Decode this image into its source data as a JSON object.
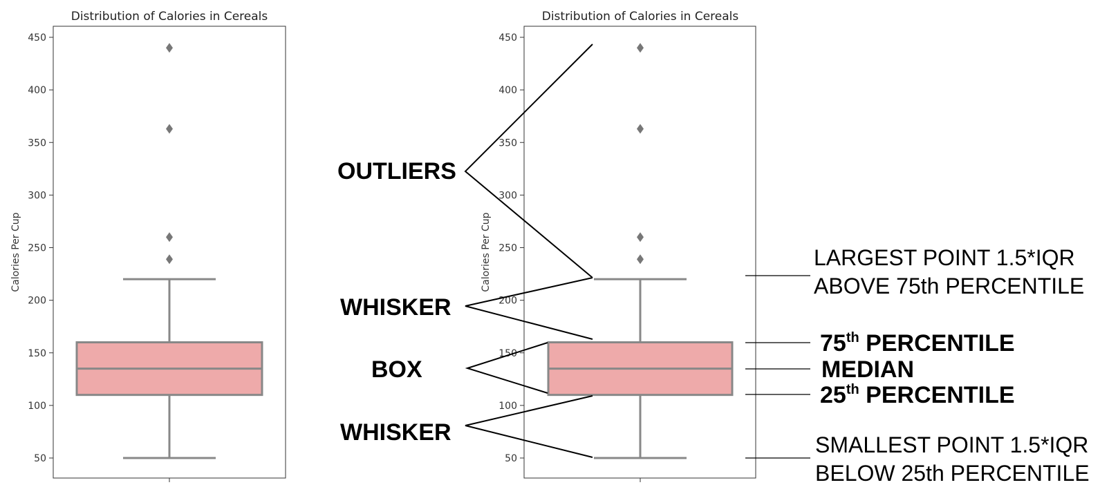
{
  "chart_data": [
    {
      "type": "box",
      "title": "Distribution of Calories in Cereals",
      "xlabel": "",
      "ylabel": "Calories Per Cup",
      "ylim": [
        30,
        460
      ],
      "yticks": [
        50,
        100,
        150,
        200,
        250,
        300,
        350,
        400,
        450
      ],
      "box": {
        "whisker_low": 50,
        "q1": 110,
        "median": 135,
        "q3": 160,
        "whisker_high": 220
      },
      "outliers": [
        239,
        260,
        363,
        440
      ],
      "color": "#eeaaaa",
      "edge_color": "#888888",
      "grid": false
    },
    {
      "type": "box",
      "title": "Distribution of Calories in Cereals",
      "xlabel": "",
      "ylabel": "Calories Per Cup",
      "ylim": [
        30,
        460
      ],
      "yticks": [
        50,
        100,
        150,
        200,
        250,
        300,
        350,
        400,
        450
      ],
      "box": {
        "whisker_low": 50,
        "q1": 110,
        "median": 135,
        "q3": 160,
        "whisker_high": 220
      },
      "outliers": [
        239,
        260,
        363,
        440
      ],
      "color": "#eeaaaa",
      "edge_color": "#888888",
      "grid": false
    }
  ],
  "annotations": {
    "outliers": "OUTLIERS",
    "whisker_upper": "WHISKER",
    "box": "BOX",
    "whisker_lower": "WHISKER",
    "largest_line1": "LARGEST POINT 1.5*IQR",
    "largest_line2": "ABOVE 75th PERCENTILE",
    "p75_num": "75",
    "p75_sup": "th",
    "p75_text": " PERCENTILE",
    "median": "MEDIAN",
    "p25_num": "25",
    "p25_sup": "th",
    "p25_text": " PERCENTILE",
    "smallest_line1": "SMALLEST POINT 1.5*IQR",
    "smallest_line2": "BELOW 25th PERCENTILE"
  }
}
